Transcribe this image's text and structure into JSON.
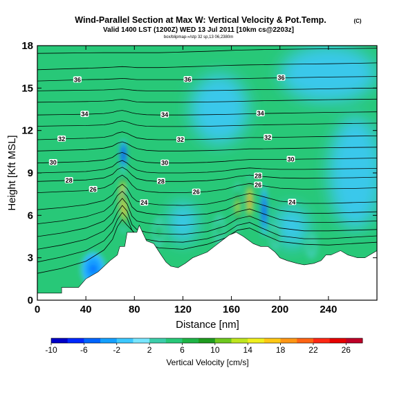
{
  "header": {
    "title": "Wind-Parallel Section at Max W: Vertical Velocity & Pot.Temp.",
    "copyright": "(C)",
    "subtitle": "Valid 1400 LST (1200Z) WED 13 Jul 2011 [10km cs@2203z]",
    "meta": "box/blipmap-»/stp 32 sp,13 06,2380m"
  },
  "chart_data": {
    "type": "heatmap",
    "xlabel": "Distance [nm]",
    "ylabel": "Height [Kft MSL]",
    "xlim": [
      0,
      280
    ],
    "ylim": [
      0,
      18
    ],
    "xticks": [
      0,
      40,
      80,
      120,
      160,
      200,
      240
    ],
    "yticks": [
      0,
      3,
      6,
      9,
      12,
      15,
      18
    ],
    "grid": false,
    "colorbar": {
      "label": "Vertical Velocity [cm/s]",
      "tick_labels": [
        "-10",
        "-6",
        "-2",
        "2",
        "6",
        "10",
        "14",
        "18",
        "22",
        "26"
      ],
      "ticks": [
        -10,
        -6,
        -2,
        2,
        6,
        10,
        14,
        18,
        22,
        26
      ],
      "range": [
        -10,
        28
      ],
      "colors": [
        "#0000c8",
        "#0028ff",
        "#0064ff",
        "#14a0ff",
        "#3cc8ff",
        "#78e6ff",
        "#3ccdaa",
        "#28c878",
        "#1eb446",
        "#1e9b1e",
        "#6ec81e",
        "#bee61e",
        "#f0f01e",
        "#ffc814",
        "#ff9614",
        "#ff6414",
        "#ff2814",
        "#e60000",
        "#be0028"
      ]
    },
    "background_color": "#28c878",
    "terrain": [
      [
        0,
        0.5
      ],
      [
        20,
        0.5
      ],
      [
        20,
        0.9
      ],
      [
        34,
        0.9
      ],
      [
        40,
        1.5
      ],
      [
        50,
        2.0
      ],
      [
        60,
        2.8
      ],
      [
        66,
        3.2
      ],
      [
        68,
        3.8
      ],
      [
        72,
        3.8
      ],
      [
        74,
        4.8
      ],
      [
        82,
        4.8
      ],
      [
        84,
        5.3
      ],
      [
        90,
        4.2
      ],
      [
        96,
        4.0
      ],
      [
        102,
        3.2
      ],
      [
        106,
        2.7
      ],
      [
        110,
        2.4
      ],
      [
        116,
        2.3
      ],
      [
        122,
        2.6
      ],
      [
        128,
        3.0
      ],
      [
        134,
        3.2
      ],
      [
        140,
        3.4
      ],
      [
        146,
        3.8
      ],
      [
        152,
        4.2
      ],
      [
        158,
        4.6
      ],
      [
        164,
        4.8
      ],
      [
        170,
        4.5
      ],
      [
        178,
        4.0
      ],
      [
        184,
        3.8
      ],
      [
        190,
        3.8
      ],
      [
        196,
        3.4
      ],
      [
        200,
        3.0
      ],
      [
        206,
        2.8
      ],
      [
        214,
        2.6
      ],
      [
        220,
        2.5
      ],
      [
        228,
        2.6
      ],
      [
        234,
        2.8
      ],
      [
        238,
        3.2
      ],
      [
        242,
        3.2
      ],
      [
        250,
        3.5
      ],
      [
        256,
        3.2
      ],
      [
        264,
        3.0
      ],
      [
        270,
        3.0
      ],
      [
        280,
        3.5
      ]
    ],
    "updrafts": [
      {
        "x": 70.5,
        "y": 7.0,
        "rx": 3.8,
        "ry": 2.3,
        "w": 26
      },
      {
        "x": 72.0,
        "y": 6.4,
        "rx": 2.6,
        "ry": 1.6,
        "w": 20
      },
      {
        "x": 175.0,
        "y": 7.0,
        "rx": 3.2,
        "ry": 1.9,
        "w": 22
      },
      {
        "x": 165.0,
        "y": 6.6,
        "rx": 3.5,
        "ry": 1.8,
        "w": 14
      },
      {
        "x": 100.0,
        "y": 4.8,
        "rx": 5.0,
        "ry": 1.1,
        "w": 6
      },
      {
        "x": 150.0,
        "y": 5.0,
        "rx": 5.0,
        "ry": 1.1,
        "w": 6
      },
      {
        "x": 196.0,
        "y": 4.5,
        "rx": 4.0,
        "ry": 1.0,
        "w": 6
      },
      {
        "x": 226.0,
        "y": 3.8,
        "rx": 5.0,
        "ry": 0.9,
        "w": 4
      }
    ],
    "downdrafts": [
      {
        "x": 71.0,
        "y": 10.3,
        "rx": 2.6,
        "ry": 1.1,
        "w": -9
      },
      {
        "x": 187.0,
        "y": 6.3,
        "rx": 2.6,
        "ry": 1.8,
        "w": -8
      },
      {
        "x": 46.0,
        "y": 2.2,
        "rx": 10.0,
        "ry": 1.2,
        "w": -5
      },
      {
        "x": 120.0,
        "y": 5.5,
        "rx": 12.0,
        "ry": 1.5,
        "w": -2
      },
      {
        "x": 210.0,
        "y": 5.2,
        "rx": 14.0,
        "ry": 1.5,
        "w": -2
      },
      {
        "x": 150.0,
        "y": 13.5,
        "rx": 24.0,
        "ry": 2.5,
        "w": -1
      },
      {
        "x": 262.0,
        "y": 9.0,
        "rx": 22.0,
        "ry": 4.0,
        "w": -1
      },
      {
        "x": 240.0,
        "y": 16.0,
        "rx": 40.0,
        "ry": 2.0,
        "w": -1
      }
    ],
    "isentropes": {
      "x": [
        0,
        20,
        40,
        55,
        62,
        66,
        70,
        74,
        78,
        82,
        90,
        100,
        120,
        140,
        155,
        165,
        175,
        185,
        200,
        220,
        240,
        260,
        280
      ],
      "levels": [
        {
          "y": [
            17.45,
            17.47,
            17.49,
            17.5,
            17.5,
            17.5,
            17.5,
            17.5,
            17.5,
            17.5,
            17.5,
            17.5,
            17.55,
            17.6,
            17.65,
            17.68,
            17.7,
            17.72,
            17.74,
            17.76,
            17.78,
            17.8,
            17.82
          ]
        },
        {
          "y": [
            16.3,
            16.35,
            16.4,
            16.45,
            16.48,
            16.5,
            16.52,
            16.5,
            16.48,
            16.45,
            16.45,
            16.45,
            16.5,
            16.55,
            16.6,
            16.62,
            16.64,
            16.65,
            16.68,
            16.7,
            16.72,
            16.75,
            16.78
          ]
        },
        {
          "label": "36",
          "label_x": [
            33,
            124,
            201
          ],
          "y": [
            15.5,
            15.55,
            15.6,
            15.62,
            15.64,
            15.66,
            15.68,
            15.66,
            15.63,
            15.6,
            15.6,
            15.6,
            15.6,
            15.62,
            15.65,
            15.66,
            15.68,
            15.7,
            15.72,
            15.75,
            15.78,
            15.8,
            15.82
          ]
        },
        {
          "y": [
            14.8,
            14.83,
            14.85,
            14.87,
            14.9,
            14.92,
            14.94,
            14.9,
            14.86,
            14.83,
            14.8,
            14.8,
            14.8,
            14.82,
            14.84,
            14.86,
            14.88,
            14.9,
            14.9,
            14.92,
            14.95,
            14.98,
            15.0
          ]
        },
        {
          "y": [
            14.0,
            14.02,
            14.05,
            14.08,
            14.12,
            14.18,
            14.2,
            14.15,
            14.08,
            14.02,
            14.0,
            14.0,
            14.0,
            14.02,
            14.04,
            14.06,
            14.08,
            14.1,
            14.12,
            14.15,
            14.18,
            14.2,
            14.22
          ]
        },
        {
          "label": "34",
          "label_x": [
            39,
            105,
            184
          ],
          "y": [
            13.1,
            13.13,
            13.15,
            13.2,
            13.28,
            13.38,
            13.42,
            13.35,
            13.25,
            13.18,
            13.12,
            13.1,
            13.1,
            13.12,
            13.14,
            13.16,
            13.18,
            13.2,
            13.22,
            13.25,
            13.28,
            13.3,
            13.32
          ]
        },
        {
          "y": [
            12.3,
            12.33,
            12.35,
            12.4,
            12.5,
            12.62,
            12.68,
            12.6,
            12.48,
            12.38,
            12.3,
            12.28,
            12.28,
            12.3,
            12.33,
            12.35,
            12.38,
            12.4,
            12.42,
            12.45,
            12.48,
            12.5,
            12.52
          ]
        },
        {
          "label": "32",
          "label_x": [
            20,
            118,
            190
          ],
          "y": [
            11.35,
            11.4,
            11.45,
            11.52,
            11.65,
            11.82,
            11.9,
            11.8,
            11.62,
            11.48,
            11.38,
            11.35,
            11.35,
            11.38,
            11.42,
            11.46,
            11.5,
            11.5,
            11.52,
            11.55,
            11.58,
            11.6,
            11.62
          ]
        },
        {
          "y": [
            10.55,
            10.6,
            10.65,
            10.75,
            10.9,
            11.1,
            11.2,
            11.08,
            10.88,
            10.72,
            10.6,
            10.55,
            10.55,
            10.58,
            10.62,
            10.66,
            10.7,
            10.7,
            10.72,
            10.75,
            10.78,
            10.8,
            10.82
          ]
        },
        {
          "label": "30",
          "label_x": [
            13,
            105,
            209
          ],
          "y": [
            9.7,
            9.75,
            9.8,
            9.92,
            10.1,
            10.35,
            10.45,
            10.3,
            10.05,
            9.88,
            9.75,
            9.7,
            9.7,
            9.75,
            9.82,
            9.9,
            9.95,
            9.95,
            9.95,
            9.98,
            10.0,
            10.02,
            10.05
          ]
        },
        {
          "y": [
            9.0,
            9.05,
            9.1,
            9.25,
            9.45,
            9.75,
            9.88,
            9.7,
            9.4,
            9.2,
            9.05,
            9.0,
            9.0,
            9.05,
            9.15,
            9.28,
            9.35,
            9.3,
            9.25,
            9.25,
            9.28,
            9.3,
            9.32
          ]
        },
        {
          "label": "28",
          "label_x": [
            26,
            102,
            182
          ],
          "y": [
            8.4,
            8.45,
            8.5,
            8.65,
            8.9,
            9.25,
            9.4,
            9.2,
            8.85,
            8.6,
            8.45,
            8.4,
            8.4,
            8.45,
            8.58,
            8.75,
            8.85,
            8.75,
            8.65,
            8.62,
            8.64,
            8.66,
            8.7
          ]
        },
        {
          "label": "26",
          "label_x": [
            46,
            131,
            182
          ],
          "y": [
            7.6,
            7.68,
            7.75,
            7.95,
            8.25,
            8.65,
            8.85,
            8.6,
            8.15,
            7.85,
            7.7,
            7.62,
            7.6,
            7.68,
            7.85,
            8.1,
            8.25,
            8.1,
            7.92,
            7.85,
            7.88,
            7.9,
            7.95
          ]
        },
        {
          "label": "24",
          "label_x": [
            88,
            210
          ],
          "y": [
            6.4,
            6.55,
            6.75,
            7.05,
            7.45,
            7.95,
            8.2,
            7.9,
            7.3,
            7.0,
            6.85,
            6.75,
            6.7,
            6.8,
            7.05,
            7.35,
            7.55,
            7.35,
            7.0,
            6.85,
            6.85,
            6.9,
            6.95
          ]
        },
        {
          "y": [
            5.4,
            5.6,
            5.9,
            6.3,
            6.8,
            7.4,
            7.7,
            7.35,
            6.6,
            6.3,
            6.15,
            6.05,
            6.0,
            6.1,
            6.4,
            6.8,
            7.0,
            6.75,
            6.35,
            6.15,
            6.15,
            6.2,
            6.25
          ]
        },
        {
          "y": [
            4.5,
            4.75,
            5.1,
            5.6,
            6.15,
            6.8,
            7.2,
            6.8,
            5.95,
            5.6,
            5.45,
            5.35,
            5.3,
            5.45,
            5.8,
            6.25,
            6.45,
            6.15,
            5.7,
            5.5,
            5.5,
            5.55,
            5.6
          ]
        },
        {
          "y": [
            3.6,
            3.9,
            4.3,
            4.9,
            5.5,
            6.2,
            6.7,
            6.3,
            5.35,
            5.0,
            4.8,
            4.7,
            4.65,
            4.85,
            5.25,
            5.75,
            5.95,
            5.6,
            5.1,
            4.9,
            4.9,
            4.95,
            5.0
          ]
        },
        {
          "y": [
            2.7,
            3.05,
            3.5,
            4.2,
            4.9,
            5.7,
            6.2,
            5.8,
            4.95,
            4.6,
            4.3,
            4.15,
            4.1,
            4.35,
            4.75,
            5.3,
            5.5,
            5.1,
            4.55,
            4.35,
            4.35,
            4.45,
            4.55
          ]
        },
        {
          "y": [
            1.9,
            2.25,
            2.75,
            3.55,
            4.3,
            5.2,
            5.7,
            5.3,
            4.95,
            4.5,
            4.0,
            3.7,
            3.6,
            3.95,
            4.4,
            4.95,
            5.1,
            4.7,
            4.15,
            3.95,
            3.9,
            4.0,
            4.1
          ]
        }
      ]
    }
  }
}
